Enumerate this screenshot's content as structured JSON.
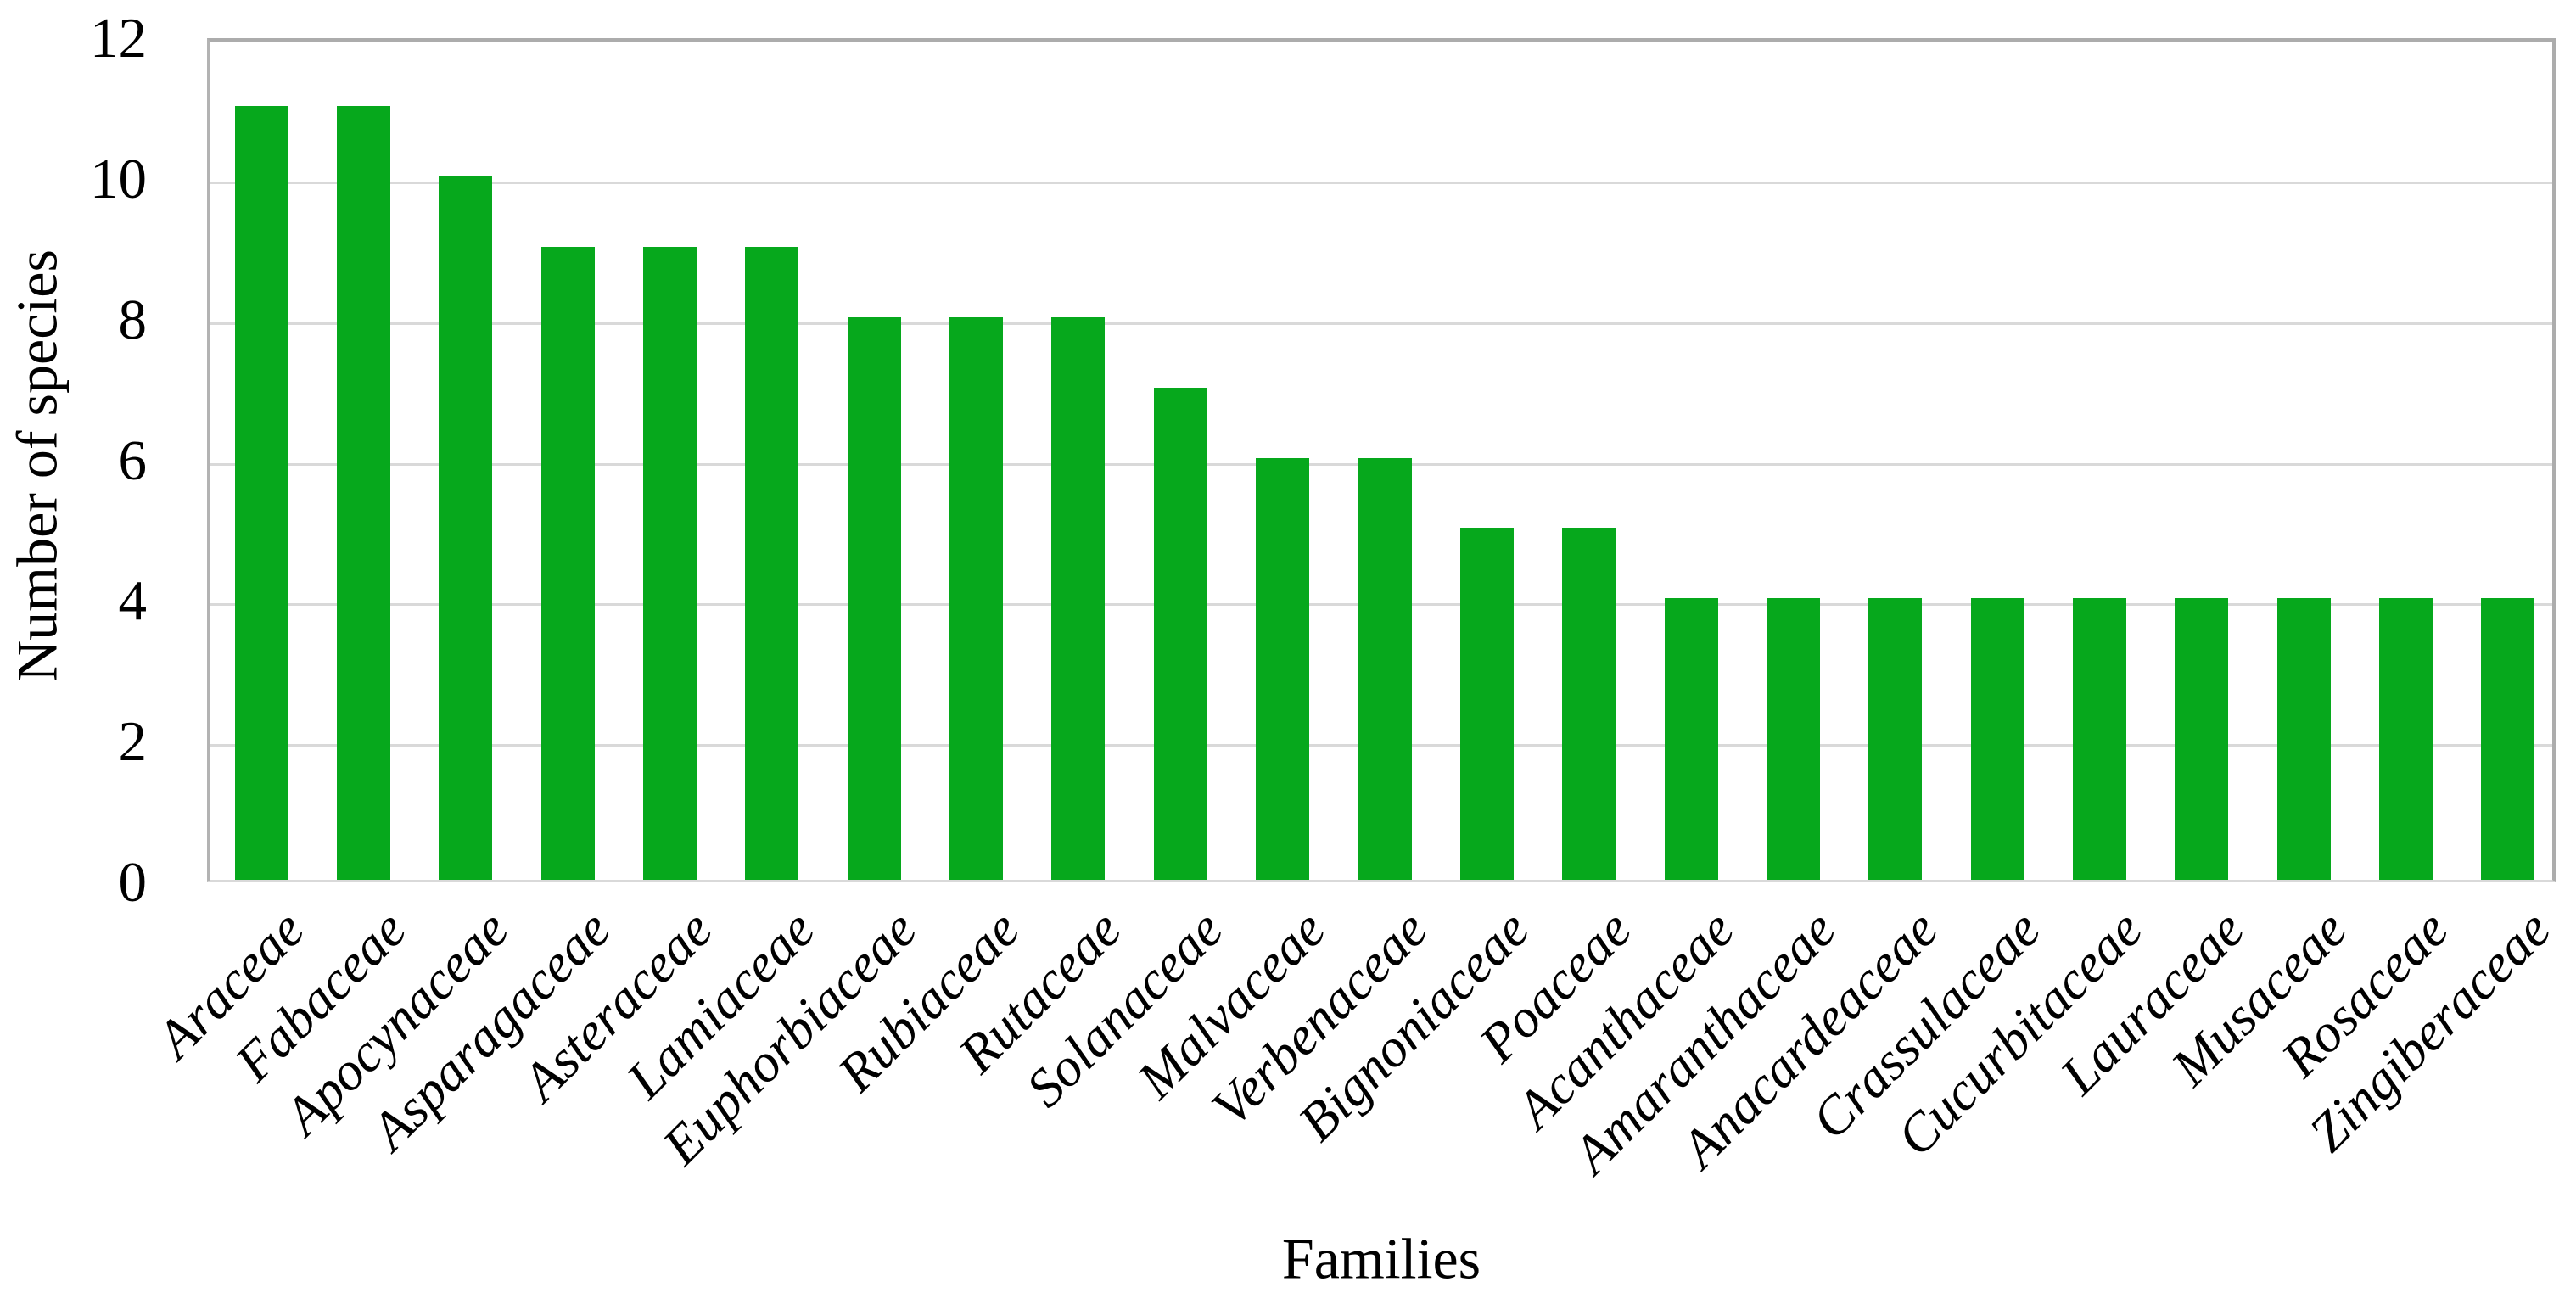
{
  "chart_data": {
    "type": "bar",
    "title": "",
    "xlabel": "Families",
    "ylabel": "Number of species",
    "categories": [
      "Araceae",
      "Fabaceae",
      "Apocynaceae",
      "Asparagaceae",
      "Asteraceae",
      "Lamiaceae",
      "Euphorbiaceae",
      "Rubiaceae",
      "Rutaceae",
      "Solanaceae",
      "Malvaceae",
      "Verbenaceae",
      "Bignoniaceae",
      "Poaceae",
      "Acanthaceae",
      "Amaranthaceae",
      "Anacardeaceae",
      "Crassulaceae",
      "Cucurbitaceae",
      "Lauraceae",
      "Musaceae",
      "Rosaceae",
      "Zingiberaceae"
    ],
    "values": [
      11,
      11,
      10,
      9,
      9,
      9,
      8,
      8,
      8,
      7,
      6,
      6,
      5,
      5,
      4,
      4,
      4,
      4,
      4,
      4,
      4,
      4,
      4
    ],
    "yticks": [
      0,
      2,
      4,
      6,
      8,
      10,
      12
    ],
    "ylim": [
      0,
      12
    ],
    "grid": true,
    "legend_position": "none",
    "colors": {
      "bar": "#06A81C",
      "gridline": "#D9D9D9",
      "axis_border": "#ACACAC",
      "text": "#000000"
    }
  }
}
